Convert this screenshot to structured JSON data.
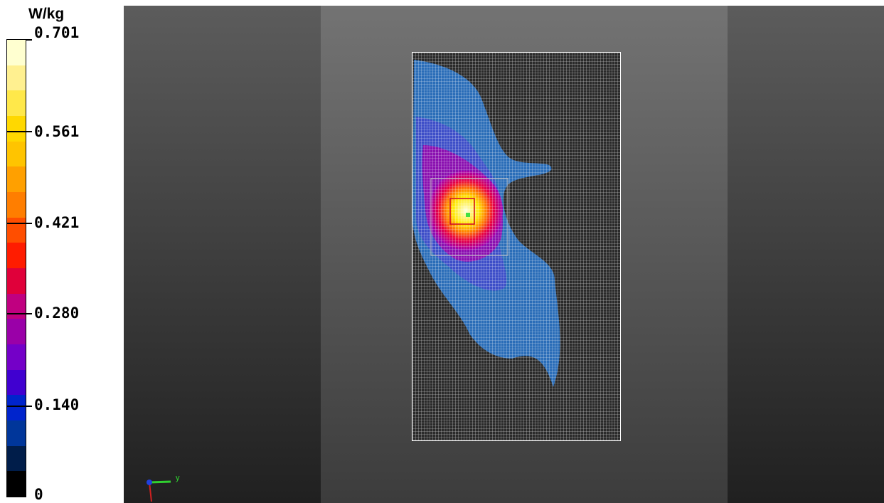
{
  "legend": {
    "unit": "W/kg",
    "ticks": [
      "0.701",
      "0.561",
      "0.421",
      "0.280",
      "0.140",
      "0"
    ],
    "colors": [
      "#ffffd0",
      "#fff090",
      "#ffe84a",
      "#ffd800",
      "#ffc400",
      "#ffa000",
      "#ff7e00",
      "#ff4e00",
      "#ff1c00",
      "#e0003a",
      "#c00080",
      "#9a00a8",
      "#7400c8",
      "#4000d0",
      "#0024cc",
      "#00369a",
      "#001d4a",
      "#000000"
    ]
  },
  "viewer": {
    "axis_label_y": "y",
    "colors": {
      "background_top": "#5c5c5c",
      "panel": "#737373",
      "grid_line": "#ffffff"
    }
  }
}
